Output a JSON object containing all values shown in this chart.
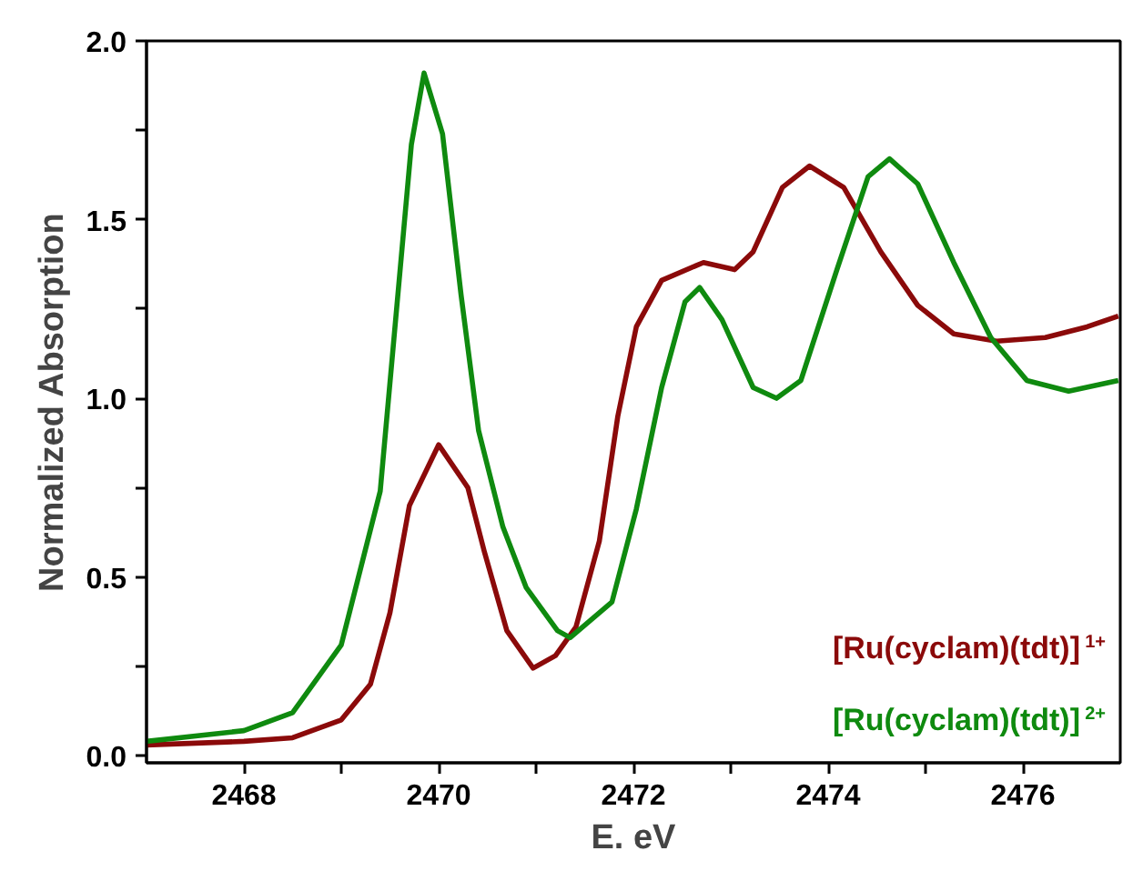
{
  "chart_data": {
    "type": "line",
    "xlabel": "E. eV",
    "ylabel": "Normalized Absorption",
    "xlim": [
      2467,
      2477
    ],
    "ylim": [
      -0.02,
      2.0
    ],
    "xticks": [
      2468,
      {
        "value": 2469,
        "label": null
      },
      2470,
      {
        "value": 2471,
        "label": null
      },
      2472,
      {
        "value": 2473,
        "label": null
      },
      2474,
      {
        "value": 2475,
        "label": null
      },
      2476
    ],
    "yticks": [
      {
        "value": 0,
        "label": "0.0"
      },
      {
        "value": 0.25,
        "label": null
      },
      0.5,
      {
        "value": 0.75,
        "label": null
      },
      {
        "value": 1,
        "label": "1.0"
      },
      {
        "value": 1.25,
        "label": null
      },
      1.5,
      {
        "value": 1.75,
        "label": null
      },
      {
        "value": 2,
        "label": "2.0"
      }
    ],
    "grid": false,
    "legend": "bottom right",
    "line_style": "solid",
    "marker": "none",
    "series": [
      {
        "name": "[Ru(cyclam)(tdt)]$^{1+}$",
        "color": "#8b0a0a",
        "x": [
          2467.0,
          2468.0,
          2468.5,
          2469.0,
          2469.3,
          2469.5,
          2469.7,
          2470.0,
          2470.3,
          2470.47,
          2470.7,
          2470.97,
          2471.2,
          2471.41,
          2471.65,
          2471.84,
          2472.03,
          2472.29,
          2472.72,
          2473.04,
          2473.23,
          2473.53,
          2473.81,
          2474.16,
          2474.54,
          2474.92,
          2475.29,
          2475.73,
          2476.23,
          2476.66,
          2476.98
        ],
        "values": [
          0.03,
          0.04,
          0.05,
          0.1,
          0.2,
          0.4,
          0.7,
          0.87,
          0.75,
          0.57,
          0.35,
          0.245,
          0.28,
          0.36,
          0.6,
          0.95,
          1.2,
          1.33,
          1.38,
          1.36,
          1.41,
          1.59,
          1.65,
          1.59,
          1.41,
          1.26,
          1.18,
          1.16,
          1.17,
          1.2,
          1.23
        ]
      },
      {
        "name": "[Ru(cyclam)(tdt)]$^{2+}$",
        "color": "#0f8a0f",
        "x": [
          2467.0,
          2468.0,
          2468.5,
          2469.0,
          2469.4,
          2469.72,
          2469.85,
          2470.04,
          2470.23,
          2470.41,
          2470.66,
          2470.9,
          2471.22,
          2471.35,
          2471.78,
          2472.03,
          2472.29,
          2472.53,
          2472.68,
          2472.91,
          2473.23,
          2473.47,
          2473.72,
          2474.09,
          2474.41,
          2474.63,
          2474.92,
          2475.29,
          2475.67,
          2476.04,
          2476.47,
          2476.98
        ],
        "values": [
          0.04,
          0.07,
          0.12,
          0.31,
          0.74,
          1.71,
          1.91,
          1.74,
          1.29,
          0.91,
          0.64,
          0.47,
          0.35,
          0.33,
          0.43,
          0.69,
          1.03,
          1.27,
          1.31,
          1.22,
          1.03,
          1.0,
          1.05,
          1.36,
          1.62,
          1.67,
          1.6,
          1.38,
          1.17,
          1.05,
          1.02,
          1.05
        ]
      }
    ]
  }
}
